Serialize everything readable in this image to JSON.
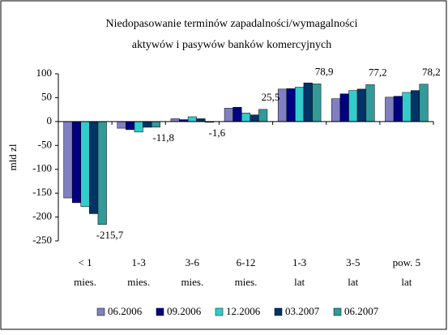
{
  "chart_data": {
    "type": "bar",
    "title": "Niedopasowanie terminów zapadalności/wymagalności\naktywów i pasywów banków komercyjnych",
    "y_label": "mld zl",
    "categories": [
      "< 1\nmies.",
      "1-3\nmies.",
      "3-6\nmies.",
      "6-12\nmies.",
      "1-3\nlat",
      "3-5\nlat",
      "pow. 5\nlat"
    ],
    "series": [
      {
        "name": "06.2006",
        "color": "#8080c0",
        "values": [
          -160,
          -14,
          6,
          28,
          68,
          48,
          51
        ]
      },
      {
        "name": "09.2006",
        "color": "#000080",
        "values": [
          -170,
          -17,
          4,
          30,
          69,
          58,
          53
        ]
      },
      {
        "name": "12.2006",
        "color": "#33cccc",
        "values": [
          -178,
          -22,
          10,
          18,
          72,
          65,
          61
        ]
      },
      {
        "name": "03.2007",
        "color": "#003366",
        "values": [
          -193,
          -12,
          6,
          14,
          81,
          68,
          65
        ]
      },
      {
        "name": "06.2007",
        "color": "#339999",
        "values": [
          -215.7,
          -11.8,
          -1.6,
          25.5,
          78.9,
          77.2,
          78.2
        ],
        "value_labels": [
          "-215,7",
          "-11,8",
          "-1,6",
          "25,5",
          "78,9",
          "77,2",
          "78,2"
        ]
      }
    ],
    "ylim": [
      -250,
      100
    ],
    "yticks": [
      -250,
      -200,
      -150,
      -100,
      -50,
      0,
      50,
      100
    ],
    "grid": false,
    "legend": "bottom"
  }
}
